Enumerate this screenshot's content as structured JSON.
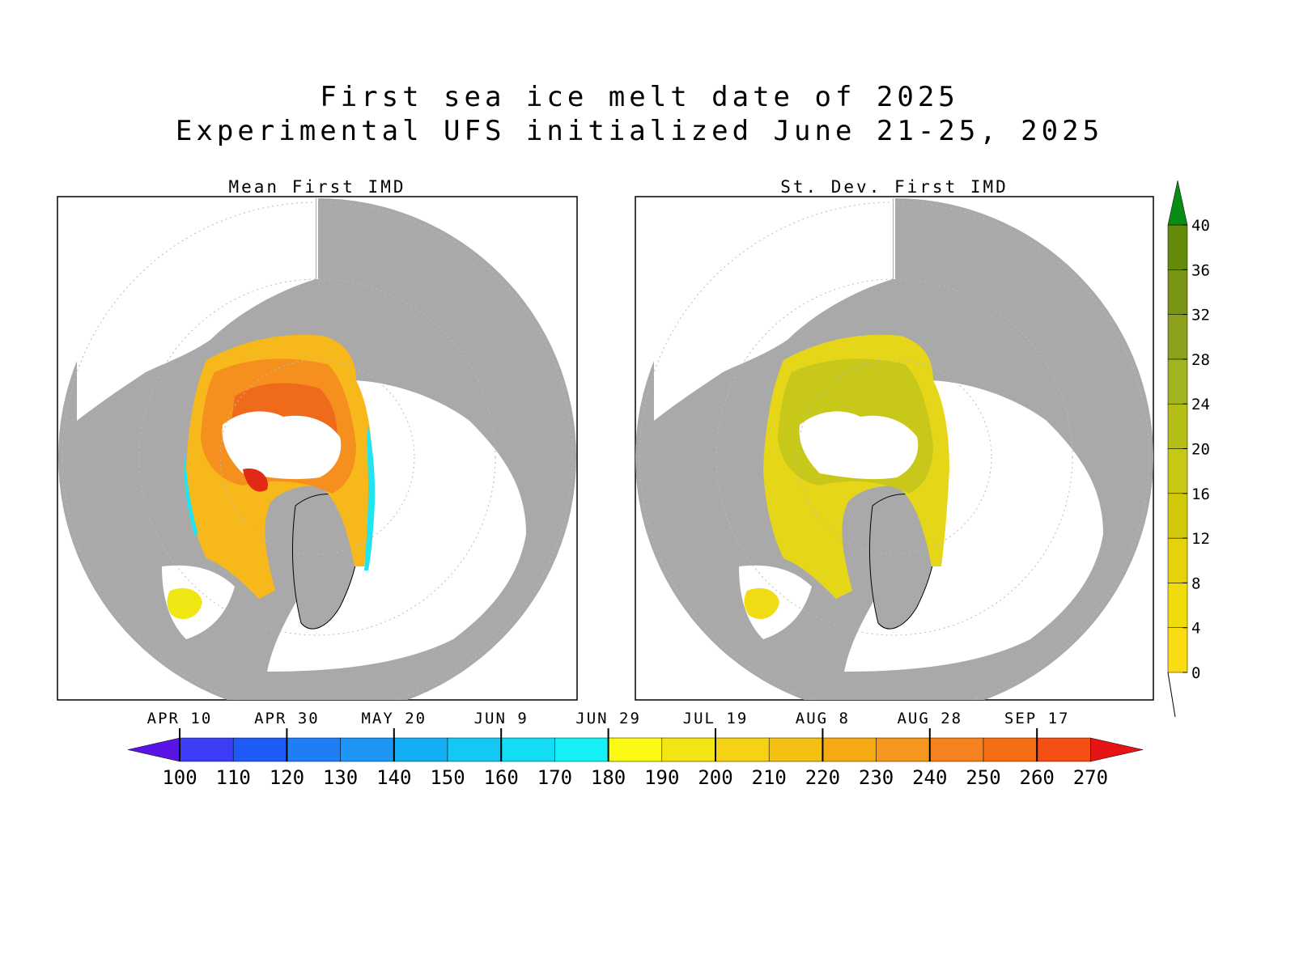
{
  "title": {
    "line1": "First sea ice melt date of 2025",
    "line2": "Experimental UFS initialized June 21-25, 2025"
  },
  "panels": [
    {
      "id": "mean",
      "title": "Mean First IMD"
    },
    {
      "id": "stdev",
      "title": "St. Dev. First IMD"
    }
  ],
  "colors": {
    "land": "#a9a9a9",
    "ocean_open": "#ffffff",
    "mean_center": "#f06a1c",
    "mean_mid": "#f5901e",
    "mean_edge": "#f6c11a",
    "mean_cyan": "#23e3f0",
    "stdev_fill": "#c8c81a",
    "stdev_edge": "#e6d61a"
  },
  "main_colorbar": {
    "values": [
      100,
      110,
      120,
      130,
      140,
      150,
      160,
      170,
      180,
      190,
      200,
      210,
      220,
      230,
      240,
      250,
      260,
      270
    ],
    "date_labels": [
      "APR 10",
      "APR 30",
      "MAY 20",
      "JUN 9",
      "JUN 29",
      "JUL 19",
      "AUG 8",
      "AUG 28",
      "SEP 17"
    ],
    "colors": [
      "#3d3df5",
      "#1e5af5",
      "#1e7ef5",
      "#1e96f5",
      "#14aef5",
      "#14c8f5",
      "#14dcf5",
      "#14f0f5",
      "#fafa14",
      "#f5e414",
      "#f5d214",
      "#f5c014",
      "#f5aa14",
      "#f5961e",
      "#f5821e",
      "#f56e14",
      "#f55014",
      "#e61414"
    ],
    "under_color": "#5a14e6",
    "over_color": "#e61414"
  },
  "side_colorbar": {
    "labels": [
      "0",
      "4",
      "8",
      "12",
      "16",
      "20",
      "24",
      "28",
      "32",
      "36",
      "40"
    ],
    "colors": [
      "#fadc14",
      "#f0dc0a",
      "#e6d20a",
      "#d2c80a",
      "#c8c814",
      "#b4be14",
      "#a0b41e",
      "#8ca01e",
      "#789614",
      "#648c0a"
    ],
    "over_color": "#0a8c14"
  }
}
